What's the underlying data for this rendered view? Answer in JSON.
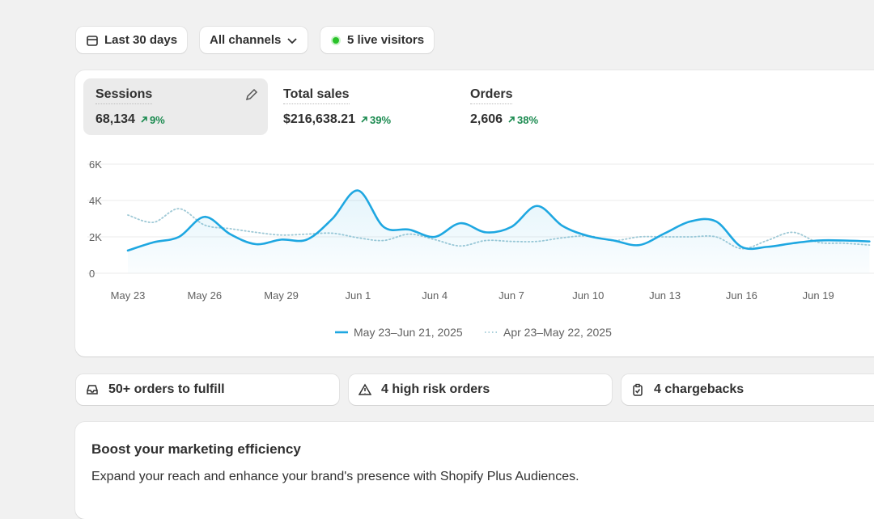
{
  "filters": {
    "date_range": "Last 30 days",
    "channels": "All channels",
    "live_visitors": "5 live visitors"
  },
  "metrics": [
    {
      "label": "Sessions",
      "value": "68,134",
      "change": "9%"
    },
    {
      "label": "Total sales",
      "value": "$216,638.21",
      "change": "39%"
    },
    {
      "label": "Orders",
      "value": "2,606",
      "change": "38%"
    }
  ],
  "chart": {
    "type": "line",
    "categories": [
      "May 23",
      null,
      null,
      "May 26",
      null,
      null,
      "May 29",
      null,
      null,
      "Jun 1",
      null,
      null,
      "Jun 4",
      null,
      null,
      "Jun 7",
      null,
      null,
      "Jun 10",
      null,
      null,
      "Jun 13",
      null,
      null,
      "Jun 16",
      null,
      null,
      "Jun 19",
      null,
      null
    ],
    "series": [
      {
        "name": "May 23–Jun 21, 2025",
        "color": "#1ea7e1",
        "line_style": "solid",
        "values": [
          1250,
          1700,
          2000,
          3100,
          2150,
          1600,
          1850,
          1850,
          3000,
          4550,
          2550,
          2400,
          2000,
          2750,
          2250,
          2550,
          3700,
          2600,
          2050,
          1800,
          1550,
          2200,
          2850,
          2850,
          1450,
          1450,
          1650,
          1800,
          1800,
          1750
        ]
      },
      {
        "name": "Apr 23–May 22, 2025",
        "color": "#9fc9d6",
        "line_style": "dotted",
        "values": [
          3200,
          2800,
          3550,
          2650,
          2450,
          2250,
          2100,
          2150,
          2200,
          1950,
          1800,
          2150,
          1850,
          1500,
          1800,
          1750,
          1750,
          1950,
          2050,
          1800,
          2000,
          2000,
          2000,
          2000,
          1350,
          1800,
          2250,
          1700,
          1650,
          1550
        ]
      }
    ],
    "ylim": [
      0,
      6000
    ],
    "yticks": [
      0,
      {
        "value": 2000,
        "label": "2K"
      },
      {
        "value": 4000,
        "label": "4K"
      },
      {
        "value": 6000,
        "label": "6K"
      }
    ],
    "grid": true
  },
  "tasks": [
    "50+ orders to fulfill",
    "4 high risk orders",
    "4 chargebacks"
  ],
  "promo": {
    "title": "Boost your marketing efficiency",
    "text": "Expand your reach and enhance your brand's presence with Shopify Plus Audiences."
  }
}
